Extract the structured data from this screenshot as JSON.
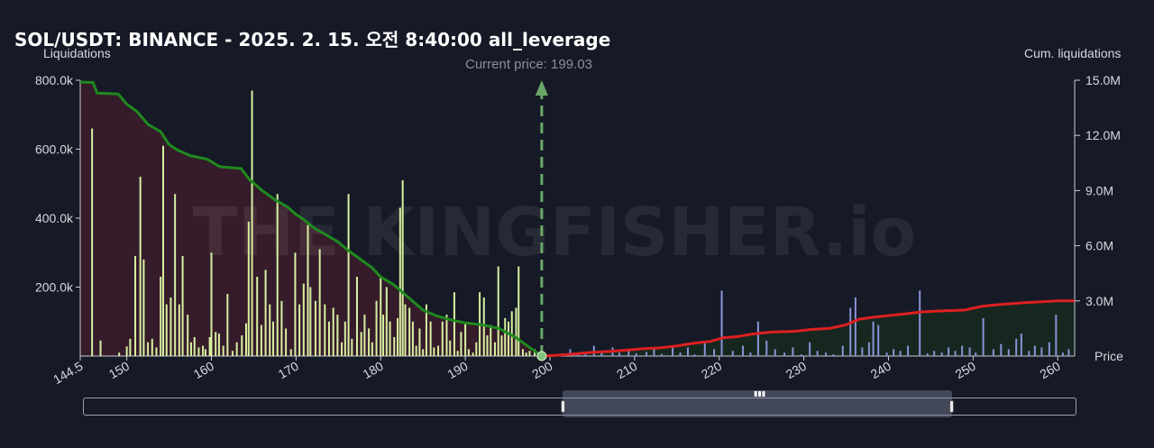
{
  "chart_data": {
    "type": "bar",
    "title": "SOL/USDT: BINANCE - 2025. 2. 15. 오전 8:40:00 all_leverage",
    "watermark": "THE KINGFISHER.io",
    "left_axis_label": "Liquidations",
    "right_axis_label": "Cum. liquidations",
    "x_axis_label": "Price",
    "current_price_text": "Current price: 199.03",
    "current_price": 199.03,
    "xlim": [
      144.5,
      262
    ],
    "ylim": [
      0,
      800000
    ],
    "y2lim": [
      0,
      15000000
    ],
    "x_ticks": [
      "144.5",
      "150",
      "160",
      "170",
      "180",
      "190",
      "200",
      "210",
      "220",
      "230",
      "240",
      "250",
      "260"
    ],
    "x_tick_values": [
      144.5,
      150,
      160,
      170,
      180,
      190,
      200,
      210,
      220,
      230,
      240,
      250,
      260
    ],
    "y_ticks": [
      "200.0k",
      "400.0k",
      "600.0k",
      "800.0k"
    ],
    "y_tick_values": [
      200000,
      400000,
      600000,
      800000
    ],
    "y2_ticks": [
      "3.0M",
      "6.0M",
      "9.0M",
      "12.0M",
      "15.0M"
    ],
    "y2_tick_values": [
      3000000,
      6000000,
      9000000,
      12000000,
      15000000
    ],
    "colors": {
      "long_bar": "#d7f0a0",
      "short_bar": "#8a93d8",
      "long_cum": "#1f8a1f",
      "short_cum": "#dd2020",
      "long_fill": "#3a1d2c",
      "short_fill": "#16291f",
      "current_line": "#6aa868"
    },
    "long_bars": [
      [
        145.9,
        660000
      ],
      [
        146.9,
        45000
      ],
      [
        149.1,
        10000
      ],
      [
        150.0,
        28000
      ],
      [
        150.4,
        50000
      ],
      [
        151.0,
        290000
      ],
      [
        151.6,
        520000
      ],
      [
        152.0,
        280000
      ],
      [
        152.5,
        40000
      ],
      [
        153.0,
        50000
      ],
      [
        153.5,
        25000
      ],
      [
        154.0,
        230000
      ],
      [
        154.3,
        610000
      ],
      [
        154.7,
        150000
      ],
      [
        155.2,
        170000
      ],
      [
        155.7,
        470000
      ],
      [
        156.2,
        150000
      ],
      [
        156.6,
        290000
      ],
      [
        157.2,
        120000
      ],
      [
        157.6,
        40000
      ],
      [
        158.0,
        55000
      ],
      [
        158.5,
        25000
      ],
      [
        159.0,
        30000
      ],
      [
        159.3,
        20000
      ],
      [
        159.8,
        55000
      ],
      [
        160.0,
        300000
      ],
      [
        160.5,
        70000
      ],
      [
        160.9,
        65000
      ],
      [
        161.4,
        30000
      ],
      [
        161.9,
        180000
      ],
      [
        162.5,
        15000
      ],
      [
        163.0,
        40000
      ],
      [
        163.6,
        60000
      ],
      [
        164.1,
        95000
      ],
      [
        164.4,
        390000
      ],
      [
        164.8,
        770000
      ],
      [
        165.4,
        230000
      ],
      [
        165.9,
        90000
      ],
      [
        166.4,
        250000
      ],
      [
        166.9,
        150000
      ],
      [
        167.3,
        100000
      ],
      [
        167.8,
        470000
      ],
      [
        168.3,
        160000
      ],
      [
        168.8,
        80000
      ],
      [
        169.4,
        20000
      ],
      [
        169.9,
        300000
      ],
      [
        170.4,
        150000
      ],
      [
        170.9,
        210000
      ],
      [
        171.4,
        380000
      ],
      [
        171.7,
        200000
      ],
      [
        172.3,
        160000
      ],
      [
        172.8,
        310000
      ],
      [
        173.4,
        150000
      ],
      [
        173.9,
        100000
      ],
      [
        174.4,
        140000
      ],
      [
        174.9,
        120000
      ],
      [
        175.4,
        40000
      ],
      [
        175.8,
        100000
      ],
      [
        176.2,
        470000
      ],
      [
        176.6,
        50000
      ],
      [
        177.2,
        230000
      ],
      [
        177.7,
        70000
      ],
      [
        178.1,
        120000
      ],
      [
        178.6,
        80000
      ],
      [
        179.0,
        40000
      ],
      [
        179.5,
        160000
      ],
      [
        180.0,
        230000
      ],
      [
        180.3,
        120000
      ],
      [
        180.7,
        200000
      ],
      [
        181.1,
        100000
      ],
      [
        181.6,
        55000
      ],
      [
        182.0,
        110000
      ],
      [
        182.3,
        430000
      ],
      [
        182.6,
        510000
      ],
      [
        182.9,
        150000
      ],
      [
        183.4,
        140000
      ],
      [
        183.8,
        100000
      ],
      [
        184.2,
        30000
      ],
      [
        184.6,
        80000
      ],
      [
        185.0,
        20000
      ],
      [
        185.4,
        150000
      ],
      [
        185.9,
        100000
      ],
      [
        186.3,
        25000
      ],
      [
        186.8,
        30000
      ],
      [
        187.3,
        100000
      ],
      [
        187.8,
        120000
      ],
      [
        188.2,
        45000
      ],
      [
        188.7,
        185000
      ],
      [
        189.1,
        15000
      ],
      [
        189.5,
        70000
      ],
      [
        190.0,
        95000
      ],
      [
        190.4,
        20000
      ],
      [
        190.9,
        10000
      ],
      [
        191.3,
        40000
      ],
      [
        191.7,
        185000
      ],
      [
        192.2,
        170000
      ],
      [
        192.6,
        60000
      ],
      [
        193.0,
        90000
      ],
      [
        193.5,
        40000
      ],
      [
        193.9,
        260000
      ],
      [
        194.3,
        60000
      ],
      [
        194.7,
        110000
      ],
      [
        195.1,
        100000
      ],
      [
        195.5,
        130000
      ],
      [
        196.0,
        140000
      ],
      [
        196.3,
        260000
      ],
      [
        196.8,
        20000
      ],
      [
        197.2,
        10000
      ],
      [
        197.6,
        15000
      ],
      [
        198.2,
        20000
      ],
      [
        198.6,
        10000
      ]
    ],
    "short_bars": [
      [
        200.6,
        5000
      ],
      [
        201.5,
        8000
      ],
      [
        202.4,
        20000
      ],
      [
        203.3,
        5000
      ],
      [
        204.2,
        10000
      ],
      [
        205.2,
        30000
      ],
      [
        206.1,
        15000
      ],
      [
        207.4,
        25000
      ],
      [
        208.2,
        10000
      ],
      [
        209.3,
        20000
      ],
      [
        210.2,
        8000
      ],
      [
        211.4,
        12000
      ],
      [
        212.3,
        20000
      ],
      [
        213.2,
        6000
      ],
      [
        214.5,
        30000
      ],
      [
        215.4,
        10000
      ],
      [
        216.3,
        25000
      ],
      [
        217.1,
        5000
      ],
      [
        218.3,
        40000
      ],
      [
        219.4,
        20000
      ],
      [
        220.3,
        190000
      ],
      [
        221.6,
        15000
      ],
      [
        222.8,
        30000
      ],
      [
        223.7,
        10000
      ],
      [
        224.6,
        100000
      ],
      [
        225.6,
        45000
      ],
      [
        226.6,
        20000
      ],
      [
        227.7,
        10000
      ],
      [
        228.7,
        25000
      ],
      [
        229.7,
        5000
      ],
      [
        230.7,
        40000
      ],
      [
        231.6,
        15000
      ],
      [
        232.6,
        10000
      ],
      [
        233.5,
        5000
      ],
      [
        234.6,
        30000
      ],
      [
        235.5,
        140000
      ],
      [
        236.1,
        170000
      ],
      [
        236.9,
        25000
      ],
      [
        237.7,
        40000
      ],
      [
        238.2,
        100000
      ],
      [
        238.8,
        90000
      ],
      [
        239.8,
        10000
      ],
      [
        240.6,
        20000
      ],
      [
        241.4,
        15000
      ],
      [
        242.3,
        30000
      ],
      [
        243.7,
        190000
      ],
      [
        244.6,
        8000
      ],
      [
        245.4,
        15000
      ],
      [
        246.3,
        10000
      ],
      [
        247.1,
        25000
      ],
      [
        247.9,
        15000
      ],
      [
        248.7,
        30000
      ],
      [
        249.6,
        25000
      ],
      [
        250.3,
        10000
      ],
      [
        251.2,
        110000
      ],
      [
        252.4,
        20000
      ],
      [
        253.3,
        35000
      ],
      [
        254.2,
        20000
      ],
      [
        255.1,
        50000
      ],
      [
        255.7,
        65000
      ],
      [
        256.6,
        15000
      ],
      [
        257.3,
        30000
      ],
      [
        258.1,
        25000
      ],
      [
        259.0,
        40000
      ],
      [
        259.8,
        120000
      ],
      [
        260.6,
        10000
      ],
      [
        261.3,
        20000
      ]
    ],
    "long_cum": [
      [
        144.5,
        14900000
      ],
      [
        146.0,
        14880000
      ],
      [
        146.5,
        14300000
      ],
      [
        149.0,
        14250000
      ],
      [
        150.0,
        13700000
      ],
      [
        151.2,
        13300000
      ],
      [
        152.5,
        12600000
      ],
      [
        154.0,
        12200000
      ],
      [
        155.0,
        11500000
      ],
      [
        156.0,
        11200000
      ],
      [
        157.5,
        10900000
      ],
      [
        159.5,
        10700000
      ],
      [
        161.0,
        10300000
      ],
      [
        163.5,
        10200000
      ],
      [
        164.5,
        9600000
      ],
      [
        166.0,
        9000000
      ],
      [
        167.5,
        8500000
      ],
      [
        169.0,
        8100000
      ],
      [
        170.0,
        7700000
      ],
      [
        171.0,
        7400000
      ],
      [
        172.0,
        7000000
      ],
      [
        173.5,
        6600000
      ],
      [
        175.0,
        6200000
      ],
      [
        176.0,
        5800000
      ],
      [
        177.5,
        5300000
      ],
      [
        179.0,
        4800000
      ],
      [
        180.0,
        4300000
      ],
      [
        181.5,
        3900000
      ],
      [
        182.5,
        3500000
      ],
      [
        184.0,
        2900000
      ],
      [
        185.0,
        2500000
      ],
      [
        186.5,
        2200000
      ],
      [
        188.0,
        2000000
      ],
      [
        190.0,
        1800000
      ],
      [
        192.0,
        1700000
      ],
      [
        194.0,
        1500000
      ],
      [
        196.0,
        1000000
      ],
      [
        197.5,
        500000
      ],
      [
        199.03,
        0
      ]
    ],
    "short_cum": [
      [
        199.03,
        0
      ],
      [
        201.0,
        50000
      ],
      [
        203.0,
        120000
      ],
      [
        205.0,
        200000
      ],
      [
        207.0,
        250000
      ],
      [
        209.0,
        320000
      ],
      [
        211.0,
        400000
      ],
      [
        213.0,
        450000
      ],
      [
        215.0,
        550000
      ],
      [
        217.0,
        700000
      ],
      [
        219.0,
        800000
      ],
      [
        220.5,
        1000000
      ],
      [
        222.0,
        1050000
      ],
      [
        224.0,
        1200000
      ],
      [
        226.0,
        1300000
      ],
      [
        229.0,
        1350000
      ],
      [
        231.0,
        1450000
      ],
      [
        233.0,
        1500000
      ],
      [
        235.0,
        1700000
      ],
      [
        236.5,
        2000000
      ],
      [
        238.0,
        2100000
      ],
      [
        240.0,
        2200000
      ],
      [
        242.0,
        2300000
      ],
      [
        244.0,
        2400000
      ],
      [
        246.0,
        2450000
      ],
      [
        249.0,
        2500000
      ],
      [
        251.0,
        2700000
      ],
      [
        253.0,
        2800000
      ],
      [
        256.0,
        2900000
      ],
      [
        260.0,
        3000000
      ],
      [
        262.0,
        3000000
      ]
    ]
  },
  "range_slider": {
    "window_start": 199.03,
    "window_end": 262,
    "grip_icon": "grip-lines-icon"
  }
}
